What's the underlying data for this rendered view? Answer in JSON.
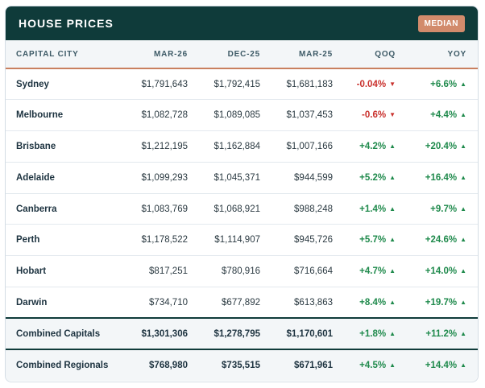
{
  "header": {
    "title": "HOUSE PRICES",
    "badge": "MEDIAN"
  },
  "columns": [
    "CAPITAL CITY",
    "MAR-26",
    "DEC-25",
    "MAR-25",
    "QOQ",
    "YOY"
  ],
  "rows": [
    {
      "city": "Sydney",
      "mar26": "$1,791,643",
      "dec25": "$1,792,415",
      "mar25": "$1,681,183",
      "qoq": "-0.04%",
      "qoq_dir": "down",
      "yoy": "+6.6%",
      "yoy_dir": "up"
    },
    {
      "city": "Melbourne",
      "mar26": "$1,082,728",
      "dec25": "$1,089,085",
      "mar25": "$1,037,453",
      "qoq": "-0.6%",
      "qoq_dir": "down",
      "yoy": "+4.4%",
      "yoy_dir": "up"
    },
    {
      "city": "Brisbane",
      "mar26": "$1,212,195",
      "dec25": "$1,162,884",
      "mar25": "$1,007,166",
      "qoq": "+4.2%",
      "qoq_dir": "up",
      "yoy": "+20.4%",
      "yoy_dir": "up"
    },
    {
      "city": "Adelaide",
      "mar26": "$1,099,293",
      "dec25": "$1,045,371",
      "mar25": "$944,599",
      "qoq": "+5.2%",
      "qoq_dir": "up",
      "yoy": "+16.4%",
      "yoy_dir": "up"
    },
    {
      "city": "Canberra",
      "mar26": "$1,083,769",
      "dec25": "$1,068,921",
      "mar25": "$988,248",
      "qoq": "+1.4%",
      "qoq_dir": "up",
      "yoy": "+9.7%",
      "yoy_dir": "up"
    },
    {
      "city": "Perth",
      "mar26": "$1,178,522",
      "dec25": "$1,114,907",
      "mar25": "$945,726",
      "qoq": "+5.7%",
      "qoq_dir": "up",
      "yoy": "+24.6%",
      "yoy_dir": "up"
    },
    {
      "city": "Hobart",
      "mar26": "$817,251",
      "dec25": "$780,916",
      "mar25": "$716,664",
      "qoq": "+4.7%",
      "qoq_dir": "up",
      "yoy": "+14.0%",
      "yoy_dir": "up"
    },
    {
      "city": "Darwin",
      "mar26": "$734,710",
      "dec25": "$677,892",
      "mar25": "$613,863",
      "qoq": "+8.4%",
      "qoq_dir": "up",
      "yoy": "+19.7%",
      "yoy_dir": "up"
    }
  ],
  "summary": [
    {
      "city": "Combined Capitals",
      "mar26": "$1,301,306",
      "dec25": "$1,278,795",
      "mar25": "$1,170,601",
      "qoq": "+1.8%",
      "qoq_dir": "up",
      "yoy": "+11.2%",
      "yoy_dir": "up"
    },
    {
      "city": "Combined Regionals",
      "mar26": "$768,980",
      "dec25": "$735,515",
      "mar25": "$671,961",
      "qoq": "+4.5%",
      "qoq_dir": "up",
      "yoy": "+14.4%",
      "yoy_dir": "up"
    }
  ],
  "icons": {
    "up": "triangle-up-icon",
    "down": "triangle-down-icon"
  },
  "colors": {
    "header_bg": "#0f3b3a",
    "badge_bg": "#d28b6c",
    "positive": "#1f8a4c",
    "negative": "#c9302c",
    "header_rule": "#c9805f"
  }
}
